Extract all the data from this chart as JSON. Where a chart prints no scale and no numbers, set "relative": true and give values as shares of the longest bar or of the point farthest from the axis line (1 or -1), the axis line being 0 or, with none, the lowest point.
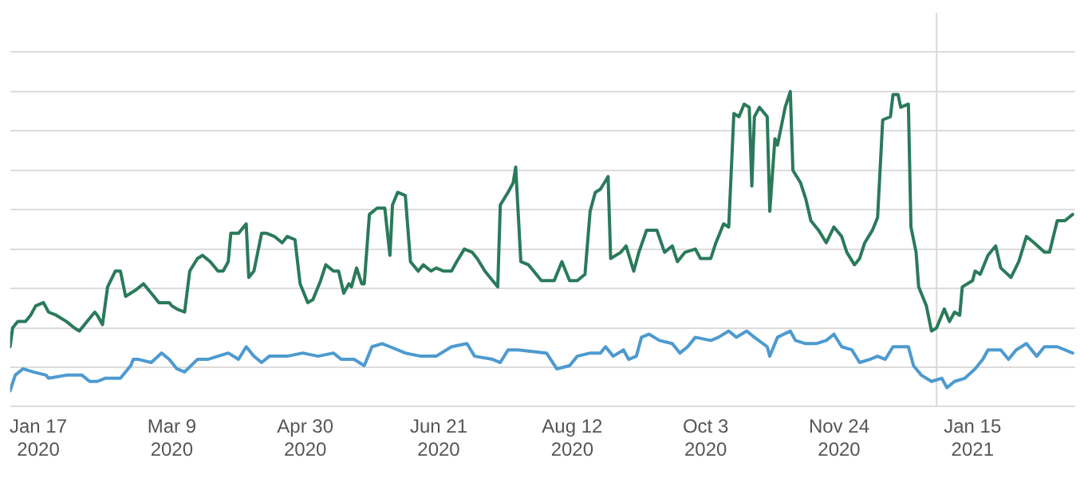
{
  "chart_data": {
    "type": "line",
    "relative": true,
    "grid": "y",
    "marker": "none",
    "line_style": "solid",
    "xlim": [
      "2020-01-06",
      "2021-02-24"
    ],
    "xticks": [
      {
        "value": "2020-01-17",
        "label": "Jan 17 2020"
      },
      {
        "value": "2020-03-09",
        "label": "Mar 9 2020"
      },
      {
        "value": "2020-04-30",
        "label": "Apr 30 2020"
      },
      {
        "value": "2020-06-21",
        "label": "Jun 21 2020"
      },
      {
        "value": "2020-08-12",
        "label": "Aug 12 2020"
      },
      {
        "value": "2020-10-03",
        "label": "Oct 3 2020"
      },
      {
        "value": "2020-11-24",
        "label": "Nov 24 2020"
      },
      {
        "value": "2021-01-15",
        "label": "Jan 15 2021"
      }
    ],
    "ref_lines": [
      {
        "axis": "x",
        "value": "2021-01-01",
        "color": "#d9d9d9"
      }
    ],
    "series": [
      {
        "color": "#2a7a5a",
        "x": [
          "2020-01-06",
          "2020-01-07",
          "2020-01-09",
          "2020-01-12",
          "2020-01-14",
          "2020-01-16",
          "2020-01-19",
          "2020-01-21",
          "2020-01-24",
          "2020-01-28",
          "2020-01-31",
          "2020-02-02",
          "2020-02-05",
          "2020-02-08",
          "2020-02-09",
          "2020-02-11",
          "2020-02-13",
          "2020-02-16",
          "2020-02-18",
          "2020-02-20",
          "2020-02-24",
          "2020-02-27",
          "2020-03-01",
          "2020-03-04",
          "2020-03-08",
          "2020-03-09",
          "2020-03-11",
          "2020-03-14",
          "2020-03-16",
          "2020-03-19",
          "2020-03-21",
          "2020-03-24",
          "2020-03-27",
          "2020-03-29",
          "2020-03-31",
          "2020-04-01",
          "2020-04-04",
          "2020-04-07",
          "2020-04-08",
          "2020-04-10",
          "2020-04-13",
          "2020-04-15",
          "2020-04-18",
          "2020-04-21",
          "2020-04-23",
          "2020-04-26",
          "2020-04-28",
          "2020-05-01",
          "2020-05-03",
          "2020-05-06",
          "2020-05-08",
          "2020-05-11",
          "2020-05-13",
          "2020-05-15",
          "2020-05-17",
          "2020-05-18",
          "2020-05-20",
          "2020-05-22",
          "2020-05-23",
          "2020-05-25",
          "2020-05-28",
          "2020-05-31",
          "2020-06-02",
          "2020-06-03",
          "2020-06-05",
          "2020-06-08",
          "2020-06-10",
          "2020-06-13",
          "2020-06-15",
          "2020-06-18",
          "2020-06-20",
          "2020-06-23",
          "2020-06-26",
          "2020-06-28",
          "2020-07-01",
          "2020-07-04",
          "2020-07-06",
          "2020-07-09",
          "2020-07-12",
          "2020-07-14",
          "2020-07-15",
          "2020-07-18",
          "2020-07-20",
          "2020-07-21",
          "2020-07-23",
          "2020-07-26",
          "2020-07-28",
          "2020-07-31",
          "2020-08-05",
          "2020-08-08",
          "2020-08-11",
          "2020-08-14",
          "2020-08-17",
          "2020-08-19",
          "2020-08-21",
          "2020-08-23",
          "2020-08-26",
          "2020-08-27",
          "2020-08-31",
          "2020-09-02",
          "2020-09-05",
          "2020-09-07",
          "2020-09-10",
          "2020-09-14",
          "2020-09-17",
          "2020-09-20",
          "2020-09-22",
          "2020-09-25",
          "2020-09-29",
          "2020-10-01",
          "2020-10-05",
          "2020-10-07",
          "2020-10-10",
          "2020-10-12",
          "2020-10-14",
          "2020-10-16",
          "2020-10-18",
          "2020-10-20",
          "2020-10-21",
          "2020-10-22",
          "2020-10-24",
          "2020-10-27",
          "2020-10-28",
          "2020-10-30",
          "2020-10-31",
          "2020-11-03",
          "2020-11-05",
          "2020-11-06",
          "2020-11-09",
          "2020-11-11",
          "2020-11-13",
          "2020-11-16",
          "2020-11-19",
          "2020-11-22",
          "2020-11-25",
          "2020-11-27",
          "2020-11-30",
          "2020-12-02",
          "2020-12-04",
          "2020-12-07",
          "2020-12-09",
          "2020-12-11",
          "2020-12-14",
          "2020-12-15",
          "2020-12-17",
          "2020-12-18",
          "2020-12-21",
          "2020-12-22",
          "2020-12-24",
          "2020-12-25",
          "2020-12-28",
          "2020-12-30",
          "2021-01-01",
          "2021-01-04",
          "2021-01-06",
          "2021-01-08",
          "2021-01-10",
          "2021-01-11",
          "2021-01-15",
          "2021-01-16",
          "2021-01-18",
          "2021-01-21",
          "2021-01-24",
          "2021-01-26",
          "2021-01-30",
          "2021-02-02",
          "2021-02-05",
          "2021-02-08",
          "2021-02-12",
          "2021-02-14",
          "2021-02-17",
          "2021-02-20",
          "2021-02-23"
        ],
        "values": [
          0.19,
          0.25,
          0.27,
          0.27,
          0.29,
          0.32,
          0.33,
          0.3,
          0.29,
          0.27,
          0.25,
          0.24,
          0.27,
          0.3,
          0.29,
          0.26,
          0.38,
          0.43,
          0.43,
          0.35,
          0.37,
          0.39,
          0.36,
          0.33,
          0.33,
          0.32,
          0.31,
          0.3,
          0.43,
          0.47,
          0.48,
          0.46,
          0.43,
          0.43,
          0.46,
          0.55,
          0.55,
          0.58,
          0.41,
          0.43,
          0.55,
          0.55,
          0.54,
          0.52,
          0.54,
          0.53,
          0.39,
          0.33,
          0.34,
          0.4,
          0.45,
          0.43,
          0.43,
          0.36,
          0.39,
          0.38,
          0.44,
          0.39,
          0.39,
          0.61,
          0.63,
          0.63,
          0.48,
          0.64,
          0.68,
          0.67,
          0.46,
          0.43,
          0.45,
          0.43,
          0.44,
          0.43,
          0.43,
          0.46,
          0.5,
          0.49,
          0.47,
          0.43,
          0.4,
          0.38,
          0.64,
          0.68,
          0.71,
          0.76,
          0.46,
          0.45,
          0.43,
          0.4,
          0.4,
          0.46,
          0.4,
          0.4,
          0.42,
          0.62,
          0.68,
          0.69,
          0.73,
          0.47,
          0.49,
          0.51,
          0.43,
          0.49,
          0.56,
          0.56,
          0.49,
          0.51,
          0.46,
          0.49,
          0.5,
          0.47,
          0.47,
          0.52,
          0.58,
          0.57,
          0.93,
          0.92,
          0.96,
          0.95,
          0.7,
          0.92,
          0.95,
          0.92,
          0.62,
          0.85,
          0.83,
          0.95,
          1,
          0.75,
          0.71,
          0.66,
          0.59,
          0.56,
          0.52,
          0.57,
          0.54,
          0.49,
          0.45,
          0.47,
          0.52,
          0.56,
          0.6,
          0.91,
          0.92,
          0.99,
          0.99,
          0.95,
          0.96,
          0.57,
          0.49,
          0.38,
          0.32,
          0.24,
          0.25,
          0.31,
          0.27,
          0.3,
          0.29,
          0.38,
          0.4,
          0.43,
          0.42,
          0.48,
          0.51,
          0.44,
          0.41,
          0.46,
          0.54,
          0.52,
          0.49,
          0.49,
          0.59,
          0.59,
          0.61
        ]
      },
      {
        "color": "#4d9ad0",
        "x": [
          "2020-01-06",
          "2020-01-08",
          "2020-01-11",
          "2020-01-15",
          "2020-01-20",
          "2020-01-21",
          "2020-01-28",
          "2020-02-03",
          "2020-02-06",
          "2020-02-09",
          "2020-02-12",
          "2020-02-18",
          "2020-02-22",
          "2020-02-23",
          "2020-02-25",
          "2020-03-01",
          "2020-03-05",
          "2020-03-08",
          "2020-03-11",
          "2020-03-14",
          "2020-03-19",
          "2020-03-23",
          "2020-03-27",
          "2020-03-31",
          "2020-04-04",
          "2020-04-07",
          "2020-04-10",
          "2020-04-13",
          "2020-04-16",
          "2020-04-23",
          "2020-04-29",
          "2020-05-05",
          "2020-05-11",
          "2020-05-14",
          "2020-05-19",
          "2020-05-23",
          "2020-05-26",
          "2020-05-30",
          "2020-06-02",
          "2020-06-08",
          "2020-06-14",
          "2020-06-20",
          "2020-06-26",
          "2020-07-02",
          "2020-07-05",
          "2020-07-12",
          "2020-07-15",
          "2020-07-18",
          "2020-07-22",
          "2020-08-02",
          "2020-08-06",
          "2020-08-11",
          "2020-08-14",
          "2020-08-19",
          "2020-08-23",
          "2020-08-25",
          "2020-08-28",
          "2020-09-01",
          "2020-09-03",
          "2020-09-06",
          "2020-09-08",
          "2020-09-11",
          "2020-09-15",
          "2020-09-20",
          "2020-09-23",
          "2020-09-26",
          "2020-09-29",
          "2020-10-05",
          "2020-10-08",
          "2020-10-12",
          "2020-10-15",
          "2020-10-19",
          "2020-10-22",
          "2020-10-27",
          "2020-10-28",
          "2020-10-31",
          "2020-11-05",
          "2020-11-07",
          "2020-11-11",
          "2020-11-15",
          "2020-11-19",
          "2020-11-22",
          "2020-11-25",
          "2020-11-29",
          "2020-12-02",
          "2020-12-06",
          "2020-12-09",
          "2020-12-12",
          "2020-12-15",
          "2020-12-21",
          "2020-12-23",
          "2020-12-26",
          "2020-12-30",
          "2021-01-03",
          "2021-01-05",
          "2021-01-08",
          "2021-01-12",
          "2021-01-16",
          "2021-01-19",
          "2021-01-21",
          "2021-01-26",
          "2021-01-29",
          "2021-02-01",
          "2021-02-05",
          "2021-02-09",
          "2021-02-12",
          "2021-02-17",
          "2021-02-23"
        ],
        "values": [
          0.05,
          0.1,
          0.12,
          0.11,
          0.1,
          0.09,
          0.1,
          0.1,
          0.08,
          0.08,
          0.09,
          0.09,
          0.13,
          0.15,
          0.15,
          0.14,
          0.17,
          0.15,
          0.12,
          0.11,
          0.15,
          0.15,
          0.16,
          0.17,
          0.15,
          0.19,
          0.16,
          0.14,
          0.16,
          0.16,
          0.17,
          0.16,
          0.17,
          0.15,
          0.15,
          0.13,
          0.19,
          0.2,
          0.19,
          0.17,
          0.16,
          0.16,
          0.19,
          0.2,
          0.16,
          0.15,
          0.14,
          0.18,
          0.18,
          0.17,
          0.12,
          0.13,
          0.16,
          0.17,
          0.17,
          0.19,
          0.16,
          0.18,
          0.15,
          0.16,
          0.22,
          0.23,
          0.21,
          0.2,
          0.17,
          0.19,
          0.22,
          0.21,
          0.22,
          0.24,
          0.22,
          0.24,
          0.22,
          0.19,
          0.16,
          0.22,
          0.24,
          0.21,
          0.2,
          0.2,
          0.21,
          0.23,
          0.19,
          0.18,
          0.14,
          0.15,
          0.16,
          0.15,
          0.19,
          0.19,
          0.13,
          0.1,
          0.08,
          0.09,
          0.06,
          0.08,
          0.09,
          0.12,
          0.15,
          0.18,
          0.18,
          0.15,
          0.18,
          0.2,
          0.16,
          0.19,
          0.19,
          0.17
        ]
      }
    ]
  }
}
